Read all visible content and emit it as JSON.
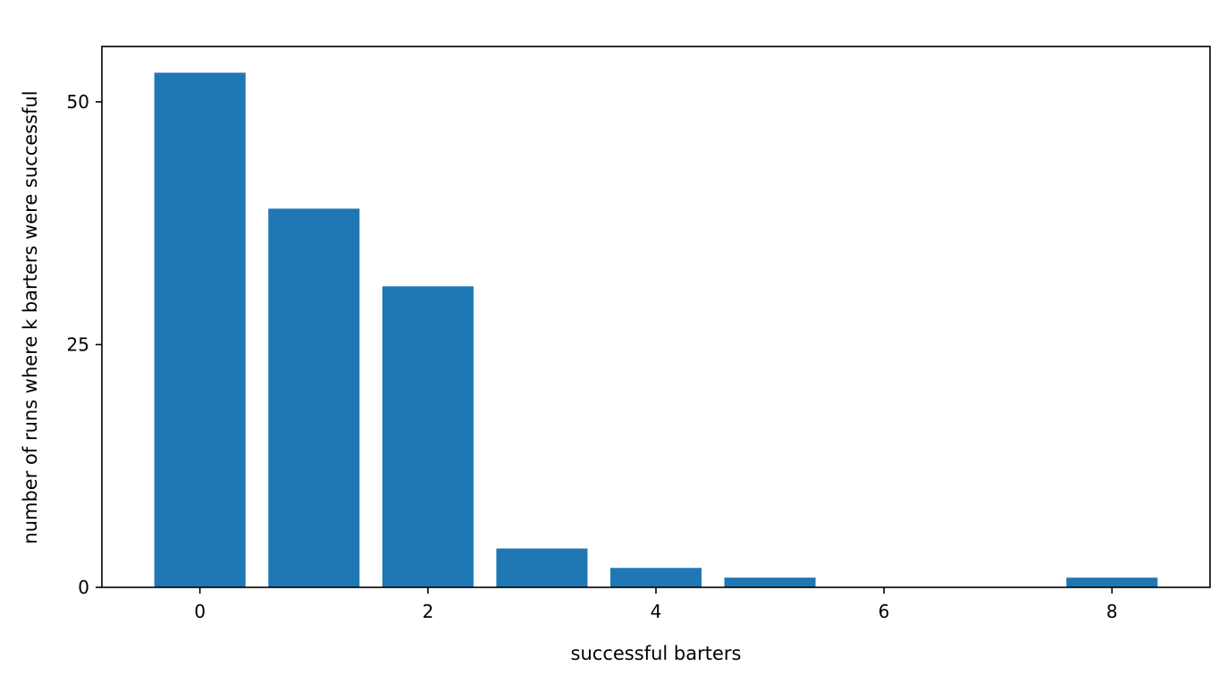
{
  "chart_data": {
    "type": "bar",
    "x": [
      0,
      1,
      2,
      3,
      4,
      5,
      6,
      7,
      8
    ],
    "values": [
      53,
      39,
      31,
      4,
      2,
      1,
      0,
      0,
      1
    ],
    "xlabel": "successful barters",
    "ylabel": "number of runs where k barters were successful",
    "xticks": [
      0,
      2,
      4,
      6,
      8
    ],
    "yticks": [
      0,
      25,
      50
    ],
    "xlim": [
      -0.86,
      8.86
    ],
    "ylim": [
      0,
      55.7
    ],
    "bar_width": 0.8,
    "bar_color": "#1f77b4",
    "grid": false,
    "legend": "none"
  }
}
